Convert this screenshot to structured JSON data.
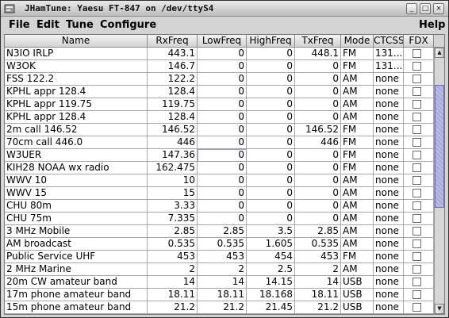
{
  "window": {
    "title": "JHamTune: Yaesu FT-847 on /dev/ttyS4"
  },
  "menubar": {
    "items": [
      "File",
      "Edit",
      "Tune",
      "Configure"
    ],
    "help": "Help"
  },
  "table": {
    "columns": [
      "Name",
      "RxFreq",
      "LowFreq",
      "HighFreq",
      "TxFreq",
      "Mode",
      "CTCSS",
      "FDX"
    ],
    "rows": [
      [
        "N3IO IRLP",
        "443.1",
        "0",
        "0",
        "448.1",
        "FM",
        "131...",
        false
      ],
      [
        "W3OK",
        "146.7",
        "0",
        "0",
        "0",
        "FM",
        "131...",
        false
      ],
      [
        "FSS 122.2",
        "122.2",
        "0",
        "0",
        "0",
        "AM",
        "none",
        false
      ],
      [
        "KPHL appr 128.4",
        "128.4",
        "0",
        "0",
        "0",
        "AM",
        "none",
        false
      ],
      [
        "KPHL appr 119.75",
        "119.75",
        "0",
        "0",
        "0",
        "AM",
        "none",
        false
      ],
      [
        "KPHL appr 128.4",
        "128.4",
        "0",
        "0",
        "0",
        "AM",
        "none",
        false
      ],
      [
        "2m call 146.52",
        "146.52",
        "0",
        "0",
        "146.52",
        "FM",
        "none",
        false
      ],
      [
        "70cm call 446.0",
        "446",
        "0",
        "0",
        "446",
        "FM",
        "none",
        false
      ],
      [
        "W3UER",
        "147.36",
        "0",
        "0",
        "0",
        "FM",
        "none",
        false
      ],
      [
        "KIH28 NOAA wx radio",
        "162.475",
        "0",
        "0",
        "0",
        "FM",
        "none",
        false
      ],
      [
        "WWV 10",
        "10",
        "0",
        "0",
        "0",
        "AM",
        "none",
        false
      ],
      [
        "WWV 15",
        "15",
        "0",
        "0",
        "0",
        "AM",
        "none",
        false
      ],
      [
        "CHU 80m",
        "3.33",
        "0",
        "0",
        "0",
        "AM",
        "none",
        false
      ],
      [
        "CHU 75m",
        "7.335",
        "0",
        "0",
        "0",
        "AM",
        "none",
        false
      ],
      [
        "3 MHz Mobile",
        "2.85",
        "2.85",
        "3.5",
        "2.85",
        "AM",
        "none",
        false
      ],
      [
        "AM broadcast",
        "0.535",
        "0.535",
        "1.605",
        "0.535",
        "AM",
        "none",
        false
      ],
      [
        "Public Service UHF",
        "453",
        "453",
        "454",
        "453",
        "FM",
        "none",
        false
      ],
      [
        "2 MHz Marine",
        "2",
        "2",
        "2.5",
        "2",
        "AM",
        "none",
        false
      ],
      [
        "20m CW amateur band",
        "14",
        "14",
        "14.15",
        "14",
        "USB",
        "none",
        false
      ],
      [
        "17m phone amateur band",
        "18.11",
        "18.11",
        "18.168",
        "18.11",
        "USB",
        "none",
        false
      ],
      [
        "15m phone amateur band",
        "21.2",
        "21.2",
        "21.45",
        "21.2",
        "USB",
        "none",
        false
      ]
    ]
  },
  "scrollbar": {
    "position": 0.22,
    "visible_fraction": 0.5
  }
}
